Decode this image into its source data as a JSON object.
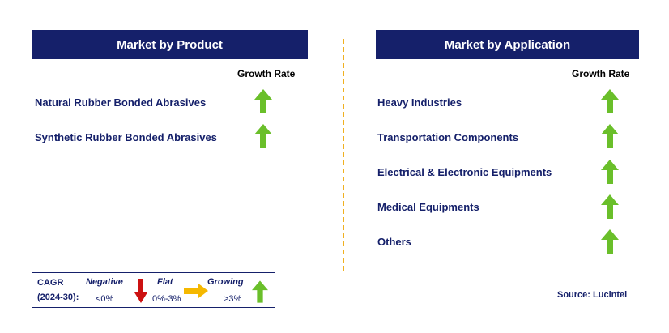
{
  "left_panel": {
    "title": "Market by Product",
    "growth_label": "Growth Rate",
    "items": [
      {
        "label": "Natural Rubber Bonded Abrasives",
        "trend": "growing"
      },
      {
        "label": "Synthetic Rubber Bonded Abrasives",
        "trend": "growing"
      }
    ]
  },
  "right_panel": {
    "title": "Market by Application",
    "growth_label": "Growth Rate",
    "items": [
      {
        "label": "Heavy Industries",
        "trend": "growing"
      },
      {
        "label": "Transportation Components",
        "trend": "growing"
      },
      {
        "label": "Electrical & Electronic Equipments",
        "trend": "growing"
      },
      {
        "label": "Medical Equipments",
        "trend": "growing"
      },
      {
        "label": "Others",
        "trend": "growing"
      }
    ]
  },
  "legend": {
    "cagr_label": "CAGR",
    "period": "(2024-30):",
    "negative": {
      "label": "Negative",
      "range": "<0%"
    },
    "flat": {
      "label": "Flat",
      "range": "0%-3%"
    },
    "growing": {
      "label": "Growing",
      "range": ">3%"
    }
  },
  "source": "Source: Lucintel",
  "colors": {
    "header_bg": "#15206a",
    "text": "#15206a",
    "growing_arrow": "#6abf2a",
    "negative_arrow": "#cc1111",
    "flat_arrow": "#f5b800",
    "divider": "#f0b020"
  }
}
